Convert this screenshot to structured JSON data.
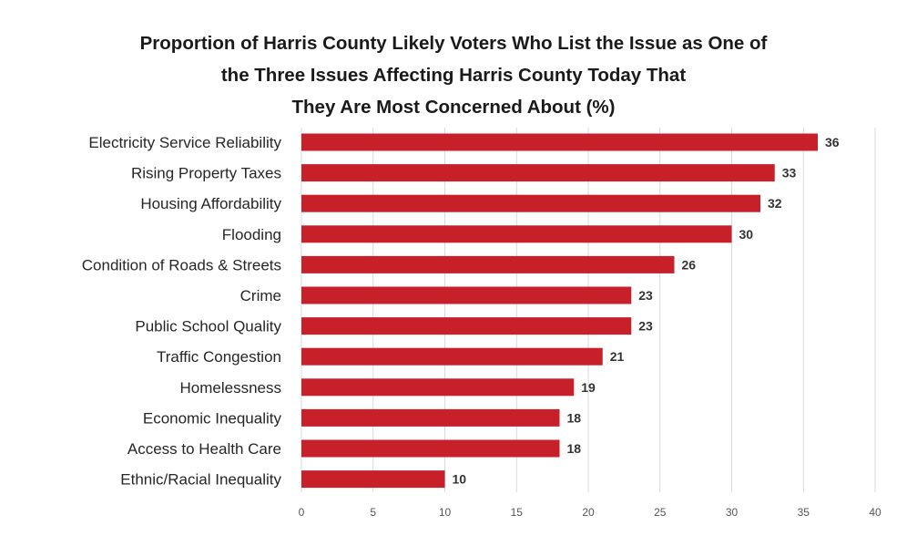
{
  "chart_data": {
    "type": "bar",
    "orientation": "horizontal",
    "title_lines": [
      "Proportion of Harris County Likely Voters Who List the Issue as One of",
      "the Three Issues Affecting Harris County Today That",
      "They Are Most Concerned About (%)"
    ],
    "categories": [
      "Electricity Service Reliability",
      "Rising Property Taxes",
      "Housing Affordability",
      "Flooding",
      "Condition of Roads & Streets",
      "Crime",
      "Public School Quality",
      "Traffic Congestion",
      "Homelessness",
      "Economic Inequality",
      "Access to Health Care",
      "Ethnic/Racial Inequality"
    ],
    "values": [
      36,
      33,
      32,
      30,
      26,
      23,
      23,
      21,
      19,
      18,
      18,
      10
    ],
    "xlim": [
      0,
      40
    ],
    "xticks": [
      0,
      5,
      10,
      15,
      20,
      25,
      30,
      35,
      40
    ],
    "xlabel": "",
    "ylabel": "",
    "grid": "vertical",
    "legend": "none",
    "bar_color": "#c8202b",
    "grid_color": "#d9d9d9"
  }
}
